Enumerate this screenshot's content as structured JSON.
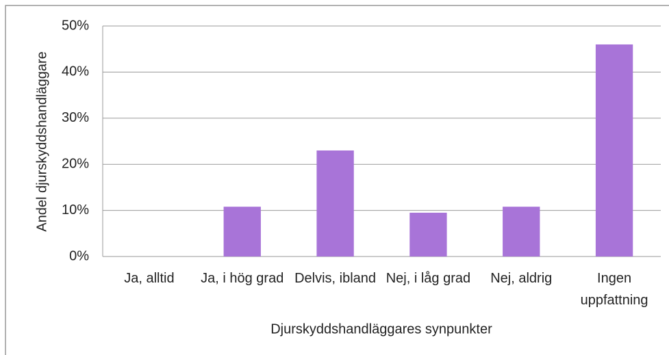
{
  "chart_data": {
    "type": "bar",
    "categories": [
      "Ja, alltid",
      "Ja, i hög grad",
      "Delvis, ibland",
      "Nej, i låg grad",
      "Nej, aldrig",
      "Ingen uppfattning"
    ],
    "values": [
      0,
      10.8,
      23,
      9.5,
      10.8,
      46
    ],
    "color": "#a874d8",
    "y_label": "Andel djurskyddshandläggare",
    "x_label": "Djurskyddshandläggares synpunkter",
    "ylim": [
      0,
      50
    ],
    "yticks": [
      {
        "value": 0,
        "label": "0%"
      },
      {
        "value": 10,
        "label": "10%"
      },
      {
        "value": 20,
        "label": "20%"
      },
      {
        "value": 30,
        "label": "30%"
      },
      {
        "value": 40,
        "label": "40%"
      },
      {
        "value": 50,
        "label": "50%"
      }
    ],
    "grid": true
  }
}
